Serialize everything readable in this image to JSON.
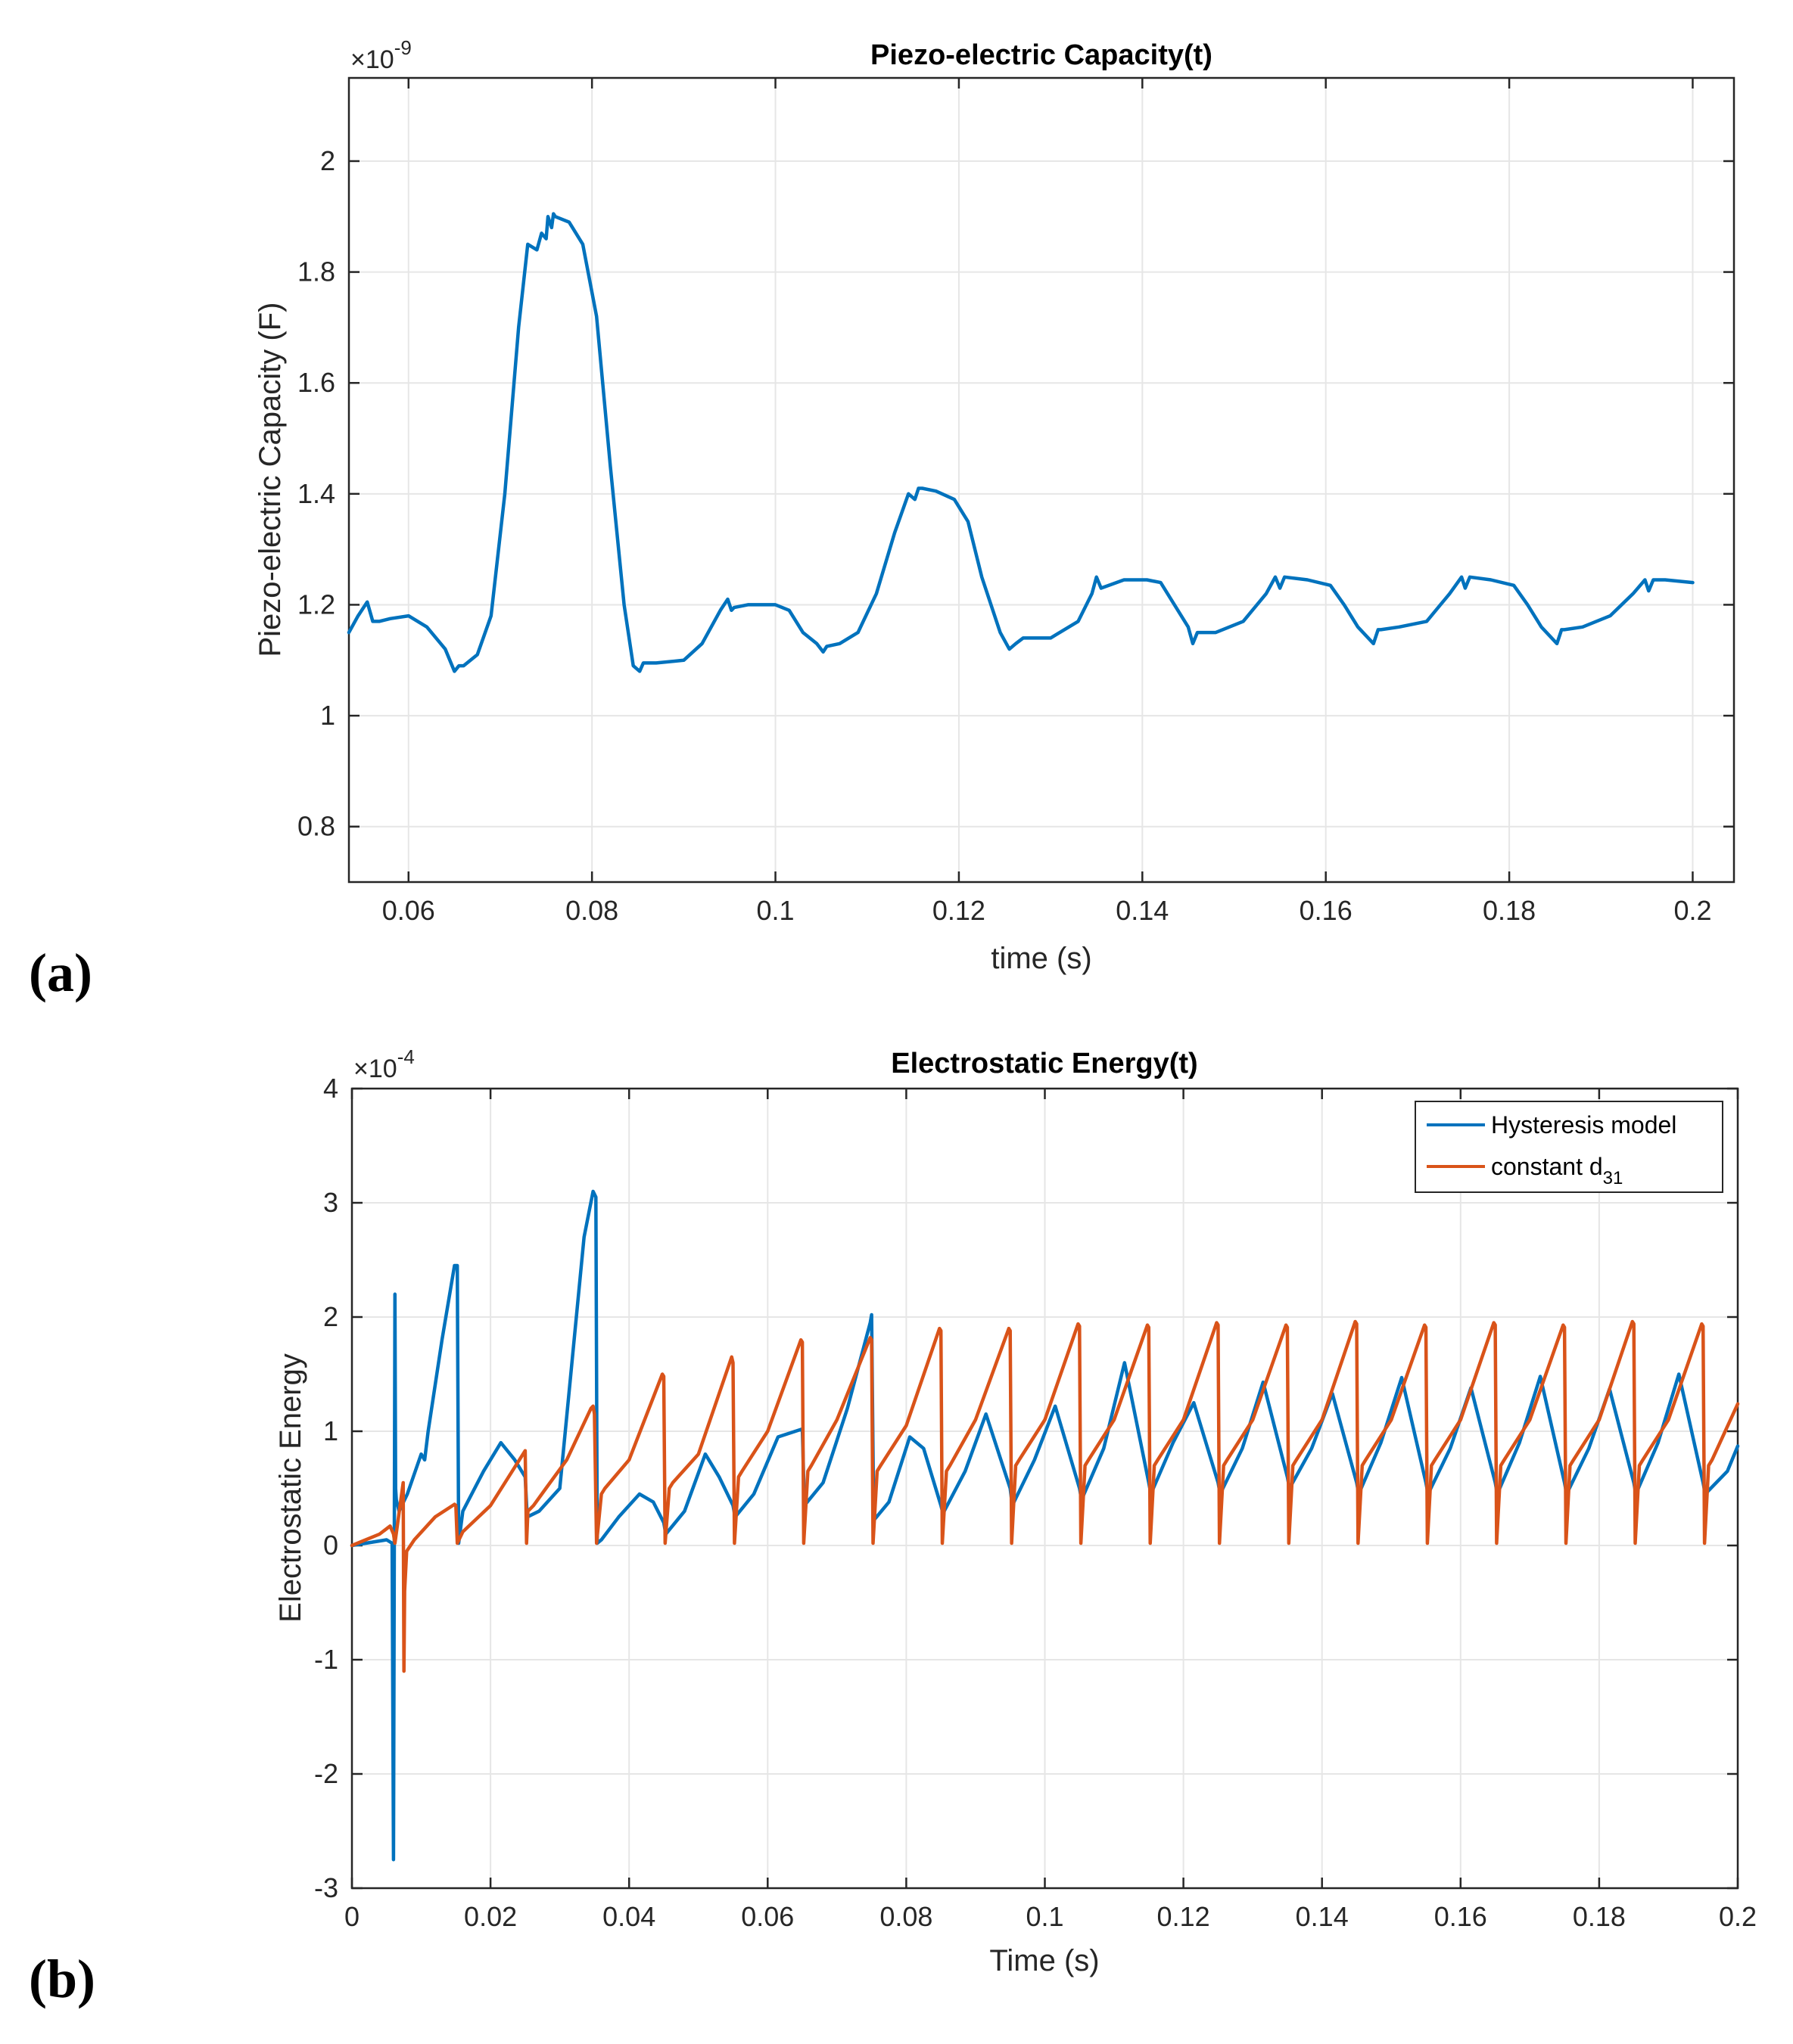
{
  "panels": [
    {
      "panel_label": "(a)",
      "chart_data": {
        "type": "line",
        "title": "Piezo-electric Capacity(t)",
        "xlabel": "time (s)",
        "ylabel": "Piezo-electric Capacity (F)",
        "y_exponent_base": "×10",
        "y_exponent_power": "-9",
        "xlim": [
          0.0535,
          0.2045
        ],
        "ylim": [
          0.7,
          2.15
        ],
        "xticks": [
          0.06,
          0.08,
          0.1,
          0.12,
          0.14,
          0.16,
          0.18,
          0.2
        ],
        "xtick_labels": [
          "0.06",
          "0.08",
          "0.1",
          "0.12",
          "0.14",
          "0.16",
          "0.18",
          "0.2"
        ],
        "yticks": [
          0.8,
          1.0,
          1.2,
          1.4,
          1.6,
          1.8,
          2.0
        ],
        "ytick_labels": [
          "0.8",
          "1",
          "1.2",
          "1.4",
          "1.6",
          "1.8",
          "2"
        ],
        "grid": true,
        "series": [
          {
            "name": "Piezo-electric Capacity",
            "color": "#0072BD",
            "x": [
              0.0535,
              0.0545,
              0.0555,
              0.0561,
              0.0568,
              0.058,
              0.06,
              0.062,
              0.064,
              0.065,
              0.0655,
              0.066,
              0.0675,
              0.069,
              0.0705,
              0.072,
              0.073,
              0.074,
              0.0745,
              0.075,
              0.0752,
              0.0756,
              0.0758,
              0.076,
              0.0775,
              0.079,
              0.0805,
              0.082,
              0.0835,
              0.0845,
              0.0852,
              0.0856,
              0.087,
              0.09,
              0.092,
              0.094,
              0.0948,
              0.0952,
              0.0955,
              0.097,
              0.1,
              0.1015,
              0.103,
              0.1045,
              0.1052,
              0.1056,
              0.107,
              0.109,
              0.111,
              0.113,
              0.1145,
              0.1152,
              0.1156,
              0.116,
              0.1175,
              0.1195,
              0.121,
              0.1225,
              0.1245,
              0.1255,
              0.1262,
              0.127,
              0.13,
              0.133,
              0.1345,
              0.135,
              0.1355,
              0.138,
              0.1405,
              0.142,
              0.1435,
              0.145,
              0.1455,
              0.146,
              0.148,
              0.151,
              0.1535,
              0.1545,
              0.155,
              0.1555,
              0.158,
              0.1605,
              0.162,
              0.1635,
              0.1652,
              0.1657,
              0.166,
              0.168,
              0.171,
              0.1735,
              0.1748,
              0.1752,
              0.1757,
              0.178,
              0.1805,
              0.182,
              0.1835,
              0.1852,
              0.1857,
              0.186,
              0.188,
              0.191,
              0.1935,
              0.1948,
              0.1952,
              0.1957,
              0.197,
              0.2
            ],
            "y": [
              1.15,
              1.18,
              1.205,
              1.17,
              1.17,
              1.175,
              1.18,
              1.16,
              1.12,
              1.08,
              1.09,
              1.09,
              1.11,
              1.18,
              1.4,
              1.7,
              1.85,
              1.84,
              1.87,
              1.86,
              1.9,
              1.88,
              1.905,
              1.9,
              1.89,
              1.85,
              1.72,
              1.45,
              1.2,
              1.09,
              1.08,
              1.095,
              1.095,
              1.1,
              1.13,
              1.19,
              1.21,
              1.19,
              1.195,
              1.2,
              1.2,
              1.19,
              1.15,
              1.13,
              1.115,
              1.125,
              1.13,
              1.15,
              1.22,
              1.33,
              1.4,
              1.39,
              1.41,
              1.41,
              1.405,
              1.39,
              1.35,
              1.25,
              1.15,
              1.12,
              1.13,
              1.14,
              1.14,
              1.17,
              1.22,
              1.25,
              1.23,
              1.245,
              1.245,
              1.24,
              1.2,
              1.16,
              1.13,
              1.15,
              1.15,
              1.17,
              1.22,
              1.25,
              1.23,
              1.25,
              1.245,
              1.235,
              1.2,
              1.16,
              1.13,
              1.155,
              1.155,
              1.16,
              1.17,
              1.22,
              1.25,
              1.23,
              1.25,
              1.245,
              1.235,
              1.2,
              1.16,
              1.13,
              1.155,
              1.155,
              1.16,
              1.18,
              1.22,
              1.245,
              1.225,
              1.245,
              1.245,
              1.24
            ]
          }
        ]
      }
    },
    {
      "panel_label": "(b)",
      "chart_data": {
        "type": "line",
        "title": "Electrostatic Energy(t)",
        "xlabel": "Time (s)",
        "ylabel": "Electrostatic Energy",
        "y_exponent_base": "×10",
        "y_exponent_power": "-4",
        "xlim": [
          0,
          0.2
        ],
        "ylim": [
          -3,
          4
        ],
        "xticks": [
          0,
          0.02,
          0.04,
          0.06,
          0.08,
          0.1,
          0.12,
          0.14,
          0.16,
          0.18,
          0.2
        ],
        "xtick_labels": [
          "0",
          "0.02",
          "0.04",
          "0.06",
          "0.08",
          "0.1",
          "0.12",
          "0.14",
          "0.16",
          "0.18",
          "0.2"
        ],
        "yticks": [
          -3,
          -2,
          -1,
          0,
          1,
          2,
          3,
          4
        ],
        "ytick_labels": [
          "-3",
          "-2",
          "-1",
          "0",
          "1",
          "2",
          "3",
          "4"
        ],
        "grid": true,
        "legend": {
          "position": "top-right",
          "entries": [
            {
              "label": "Hysteresis model",
              "subscript": ""
            },
            {
              "label": "constant d",
              "subscript": "31"
            }
          ]
        },
        "series": [
          {
            "name": "Hysteresis model",
            "color": "#0072BD",
            "x": [
              0,
              0.003,
              0.005,
              0.0058,
              0.006,
              0.0062,
              0.0063,
              0.0064,
              0.0068,
              0.008,
              0.01,
              0.0105,
              0.011,
              0.013,
              0.0148,
              0.0152,
              0.0154,
              0.016,
              0.019,
              0.0215,
              0.0235,
              0.025,
              0.0253,
              0.027,
              0.03,
              0.0335,
              0.0348,
              0.0352,
              0.0354,
              0.036,
              0.0385,
              0.0415,
              0.0435,
              0.045,
              0.0453,
              0.048,
              0.051,
              0.053,
              0.055,
              0.0553,
              0.058,
              0.0615,
              0.065,
              0.0653,
              0.068,
              0.0715,
              0.0748,
              0.075,
              0.0753,
              0.0775,
              0.0805,
              0.0825,
              0.085,
              0.0853,
              0.0885,
              0.0915,
              0.095,
              0.0953,
              0.0985,
              0.1015,
              0.105,
              0.1053,
              0.1085,
              0.1115,
              0.115,
              0.1153,
              0.1185,
              0.1215,
              0.125,
              0.1253,
              0.1285,
              0.1315,
              0.135,
              0.1353,
              0.1385,
              0.1415,
              0.145,
              0.1453,
              0.1485,
              0.1515,
              0.155,
              0.1553,
              0.1585,
              0.1615,
              0.165,
              0.1653,
              0.1685,
              0.1715,
              0.175,
              0.1753,
              0.1785,
              0.1815,
              0.185,
              0.1853,
              0.1885,
              0.1915,
              0.195,
              0.1953,
              0.1985,
              0.2
            ],
            "y": [
              0,
              0.03,
              0.05,
              0.02,
              -2.75,
              2.2,
              0.5,
              0.4,
              0.3,
              0.45,
              0.8,
              0.75,
              1.0,
              1.8,
              2.45,
              2.45,
              0.02,
              0.3,
              0.65,
              0.9,
              0.75,
              0.6,
              0.25,
              0.3,
              0.5,
              2.7,
              3.1,
              3.05,
              0.02,
              0.05,
              0.25,
              0.45,
              0.38,
              0.2,
              0.1,
              0.3,
              0.8,
              0.6,
              0.35,
              0.25,
              0.45,
              0.95,
              1.02,
              0.35,
              0.55,
              1.2,
              1.95,
              2.02,
              0.22,
              0.38,
              0.95,
              0.85,
              0.35,
              0.28,
              0.65,
              1.15,
              0.5,
              0.35,
              0.75,
              1.22,
              0.5,
              0.4,
              0.85,
              1.6,
              0.55,
              0.45,
              0.9,
              1.25,
              0.55,
              0.45,
              0.85,
              1.43,
              0.6,
              0.5,
              0.85,
              1.33,
              0.55,
              0.45,
              0.9,
              1.47,
              0.55,
              0.45,
              0.85,
              1.38,
              0.55,
              0.45,
              0.9,
              1.48,
              0.55,
              0.45,
              0.85,
              1.37,
              0.55,
              0.45,
              0.9,
              1.5,
              0.55,
              0.45,
              0.65,
              0.87
            ]
          },
          {
            "name": "constant d31",
            "color": "#D95319",
            "x": [
              0,
              0.004,
              0.0055,
              0.006,
              0.0062,
              0.0074,
              0.0075,
              0.0076,
              0.0079,
              0.009,
              0.012,
              0.0148,
              0.015,
              0.0152,
              0.016,
              0.02,
              0.025,
              0.0252,
              0.0254,
              0.0262,
              0.028,
              0.031,
              0.0345,
              0.0348,
              0.035,
              0.0353,
              0.036,
              0.0365,
              0.04,
              0.0448,
              0.045,
              0.0452,
              0.0458,
              0.0463,
              0.05,
              0.0548,
              0.055,
              0.0552,
              0.0558,
              0.0563,
              0.06,
              0.0648,
              0.065,
              0.0652,
              0.0658,
              0.0663,
              0.07,
              0.0748,
              0.075,
              0.0752,
              0.0758,
              0.0763,
              0.08,
              0.0848,
              0.085,
              0.0852,
              0.0858,
              0.0863,
              0.09,
              0.0948,
              0.095,
              0.0952,
              0.0958,
              0.0963,
              0.1,
              0.1048,
              0.105,
              0.1052,
              0.1058,
              0.1063,
              0.11,
              0.1148,
              0.115,
              0.1152,
              0.1158,
              0.1163,
              0.12,
              0.1248,
              0.125,
              0.1252,
              0.1258,
              0.1263,
              0.13,
              0.1348,
              0.135,
              0.1352,
              0.1358,
              0.1363,
              0.14,
              0.1448,
              0.145,
              0.1452,
              0.1458,
              0.1463,
              0.15,
              0.1548,
              0.155,
              0.1552,
              0.1558,
              0.1563,
              0.16,
              0.1648,
              0.165,
              0.1652,
              0.1658,
              0.1663,
              0.17,
              0.1748,
              0.175,
              0.1752,
              0.1758,
              0.1763,
              0.18,
              0.1848,
              0.185,
              0.1852,
              0.1858,
              0.1863,
              0.19,
              0.1948,
              0.195,
              0.1952,
              0.1958,
              0.1963,
              0.2
            ],
            "y": [
              0,
              0.1,
              0.17,
              0.1,
              0.02,
              0.55,
              -1.1,
              -0.4,
              -0.05,
              0.05,
              0.25,
              0.36,
              0.35,
              0.02,
              0.12,
              0.35,
              0.83,
              0.02,
              0.3,
              0.35,
              0.5,
              0.75,
              1.2,
              1.22,
              1.15,
              0.02,
              0.45,
              0.5,
              0.75,
              1.5,
              1.48,
              0.02,
              0.5,
              0.55,
              0.8,
              1.65,
              1.6,
              0.02,
              0.6,
              0.65,
              1.0,
              1.8,
              1.78,
              0.02,
              0.65,
              0.7,
              1.1,
              1.82,
              1.8,
              0.02,
              0.65,
              0.7,
              1.05,
              1.9,
              1.88,
              0.02,
              0.65,
              0.7,
              1.1,
              1.9,
              1.88,
              0.02,
              0.7,
              0.75,
              1.1,
              1.94,
              1.92,
              0.02,
              0.7,
              0.75,
              1.1,
              1.93,
              1.91,
              0.02,
              0.7,
              0.75,
              1.1,
              1.95,
              1.93,
              0.02,
              0.7,
              0.75,
              1.1,
              1.93,
              1.91,
              0.02,
              0.7,
              0.75,
              1.1,
              1.96,
              1.94,
              0.02,
              0.7,
              0.75,
              1.1,
              1.93,
              1.91,
              0.02,
              0.7,
              0.75,
              1.1,
              1.95,
              1.93,
              0.02,
              0.7,
              0.75,
              1.1,
              1.93,
              1.91,
              0.02,
              0.7,
              0.75,
              1.1,
              1.96,
              1.94,
              0.02,
              0.7,
              0.75,
              1.1,
              1.94,
              1.92,
              0.02,
              0.7,
              0.75,
              1.24
            ]
          }
        ]
      }
    }
  ]
}
